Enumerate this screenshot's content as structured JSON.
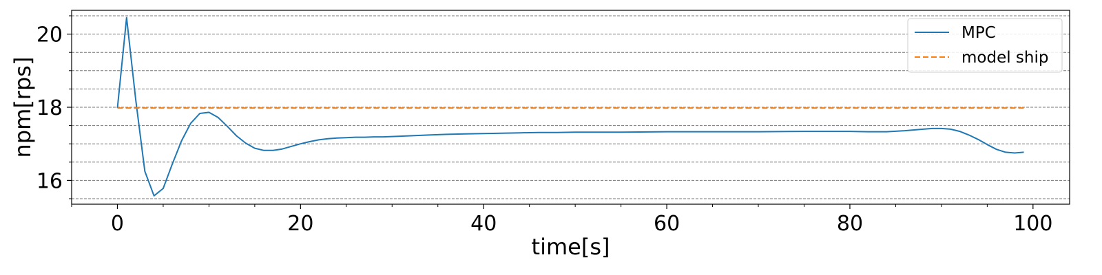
{
  "chart_data": {
    "type": "line",
    "xlabel": "time[s]",
    "ylabel": "npm[rps]",
    "xlim": [
      -5,
      104
    ],
    "ylim": [
      15.35,
      20.65
    ],
    "xticks": [
      0,
      20,
      40,
      60,
      80,
      100
    ],
    "xtick_labels": [
      "0",
      "20",
      "40",
      "60",
      "80",
      "100"
    ],
    "xminor_step": 5,
    "yticks": [
      16,
      18,
      20
    ],
    "ytick_labels": [
      "16",
      "18",
      "20"
    ],
    "yminor_step": 0.5,
    "grid": "horizontal dashed at every 0.5",
    "legend_position": "top-right",
    "series": [
      {
        "name": "MPC",
        "color": "#1f77b4",
        "style": "solid",
        "x": [
          0,
          1,
          2,
          3,
          4,
          5,
          6,
          7,
          8,
          9,
          10,
          11,
          12,
          13,
          14,
          15,
          16,
          17,
          18,
          19,
          20,
          21,
          22,
          23,
          24,
          25,
          26,
          27,
          28,
          29,
          30,
          32,
          34,
          36,
          38,
          40,
          42,
          44,
          46,
          48,
          50,
          55,
          60,
          65,
          70,
          75,
          80,
          82,
          84,
          86,
          88,
          89,
          90,
          91,
          92,
          93,
          94,
          95,
          96,
          97,
          98,
          99
        ],
        "y": [
          17.98,
          20.45,
          18.2,
          16.25,
          15.58,
          15.78,
          16.45,
          17.08,
          17.56,
          17.83,
          17.86,
          17.72,
          17.48,
          17.22,
          17.02,
          16.88,
          16.82,
          16.82,
          16.86,
          16.93,
          17.0,
          17.06,
          17.11,
          17.14,
          17.16,
          17.17,
          17.18,
          17.18,
          17.19,
          17.19,
          17.2,
          17.22,
          17.24,
          17.26,
          17.27,
          17.28,
          17.29,
          17.3,
          17.31,
          17.31,
          17.32,
          17.32,
          17.33,
          17.33,
          17.33,
          17.34,
          17.34,
          17.33,
          17.33,
          17.36,
          17.4,
          17.42,
          17.42,
          17.4,
          17.34,
          17.24,
          17.12,
          16.98,
          16.85,
          16.77,
          16.75,
          16.77
        ]
      },
      {
        "name": "model ship",
        "color": "#ff7f0e",
        "style": "dashed",
        "x": [
          0,
          99
        ],
        "y": [
          17.98,
          17.98
        ]
      }
    ]
  }
}
